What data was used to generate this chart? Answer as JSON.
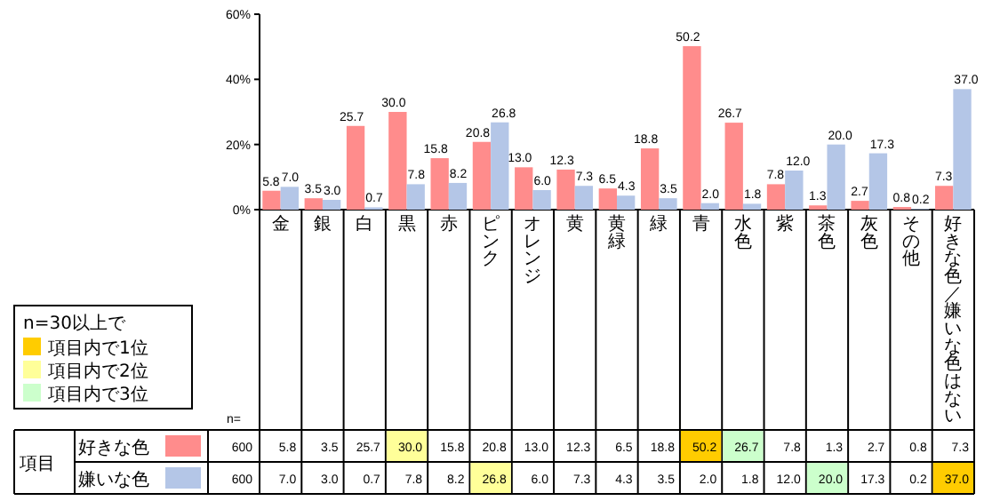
{
  "chart_data": {
    "type": "bar",
    "categories": [
      "金",
      "銀",
      "白",
      "黒",
      "赤",
      "ピンク",
      "オレンジ",
      "黄",
      "黄緑",
      "緑",
      "青",
      "水色",
      "紫",
      "茶色",
      "灰色",
      "その他",
      "好きな色／嫌いな色はない"
    ],
    "series": [
      {
        "name": "好きな色",
        "color": "#ff8c8c",
        "values": [
          5.8,
          3.5,
          25.7,
          30.0,
          15.8,
          20.8,
          13.0,
          12.3,
          6.5,
          18.8,
          50.2,
          26.7,
          7.8,
          1.3,
          2.7,
          0.8,
          7.3
        ],
        "value_labels": [
          "5.8",
          "3.5",
          "25.7",
          "30.0",
          "15.8",
          "20.8",
          "13.0",
          "12.3",
          "6.5",
          "18.8",
          "50.2",
          "26.7",
          "7.8",
          "1.3",
          "2.7",
          "0.8",
          "7.3"
        ]
      },
      {
        "name": "嫌いな色",
        "color": "#b4c6e7",
        "values": [
          7.0,
          3.0,
          0.7,
          7.8,
          8.2,
          26.8,
          6.0,
          7.3,
          4.3,
          3.5,
          2.0,
          1.8,
          12.0,
          20.0,
          17.3,
          0.2,
          37.0
        ],
        "value_labels": [
          "7.0",
          "3.0",
          "0.7",
          "7.8",
          "8.2",
          "26.8",
          "6.0",
          "7.3",
          "4.3",
          "3.5",
          "2.0",
          "1.8",
          "12.0",
          "20.0",
          "17.3",
          "0.2",
          "37.0"
        ]
      }
    ],
    "legend": "bottom left",
    "ylim": [
      0,
      60
    ],
    "yticks": [
      {
        "value": 0,
        "label": "0%"
      },
      {
        "value": 20,
        "label": "20%"
      },
      {
        "value": 40,
        "label": "40%"
      },
      {
        "value": 60,
        "label": "60%"
      }
    ],
    "annotations": [
      "n=30以上で",
      "項目内で1位",
      "項目内で2位",
      "項目内で3位",
      "項目",
      "n=",
      "600",
      "600"
    ]
  }
}
